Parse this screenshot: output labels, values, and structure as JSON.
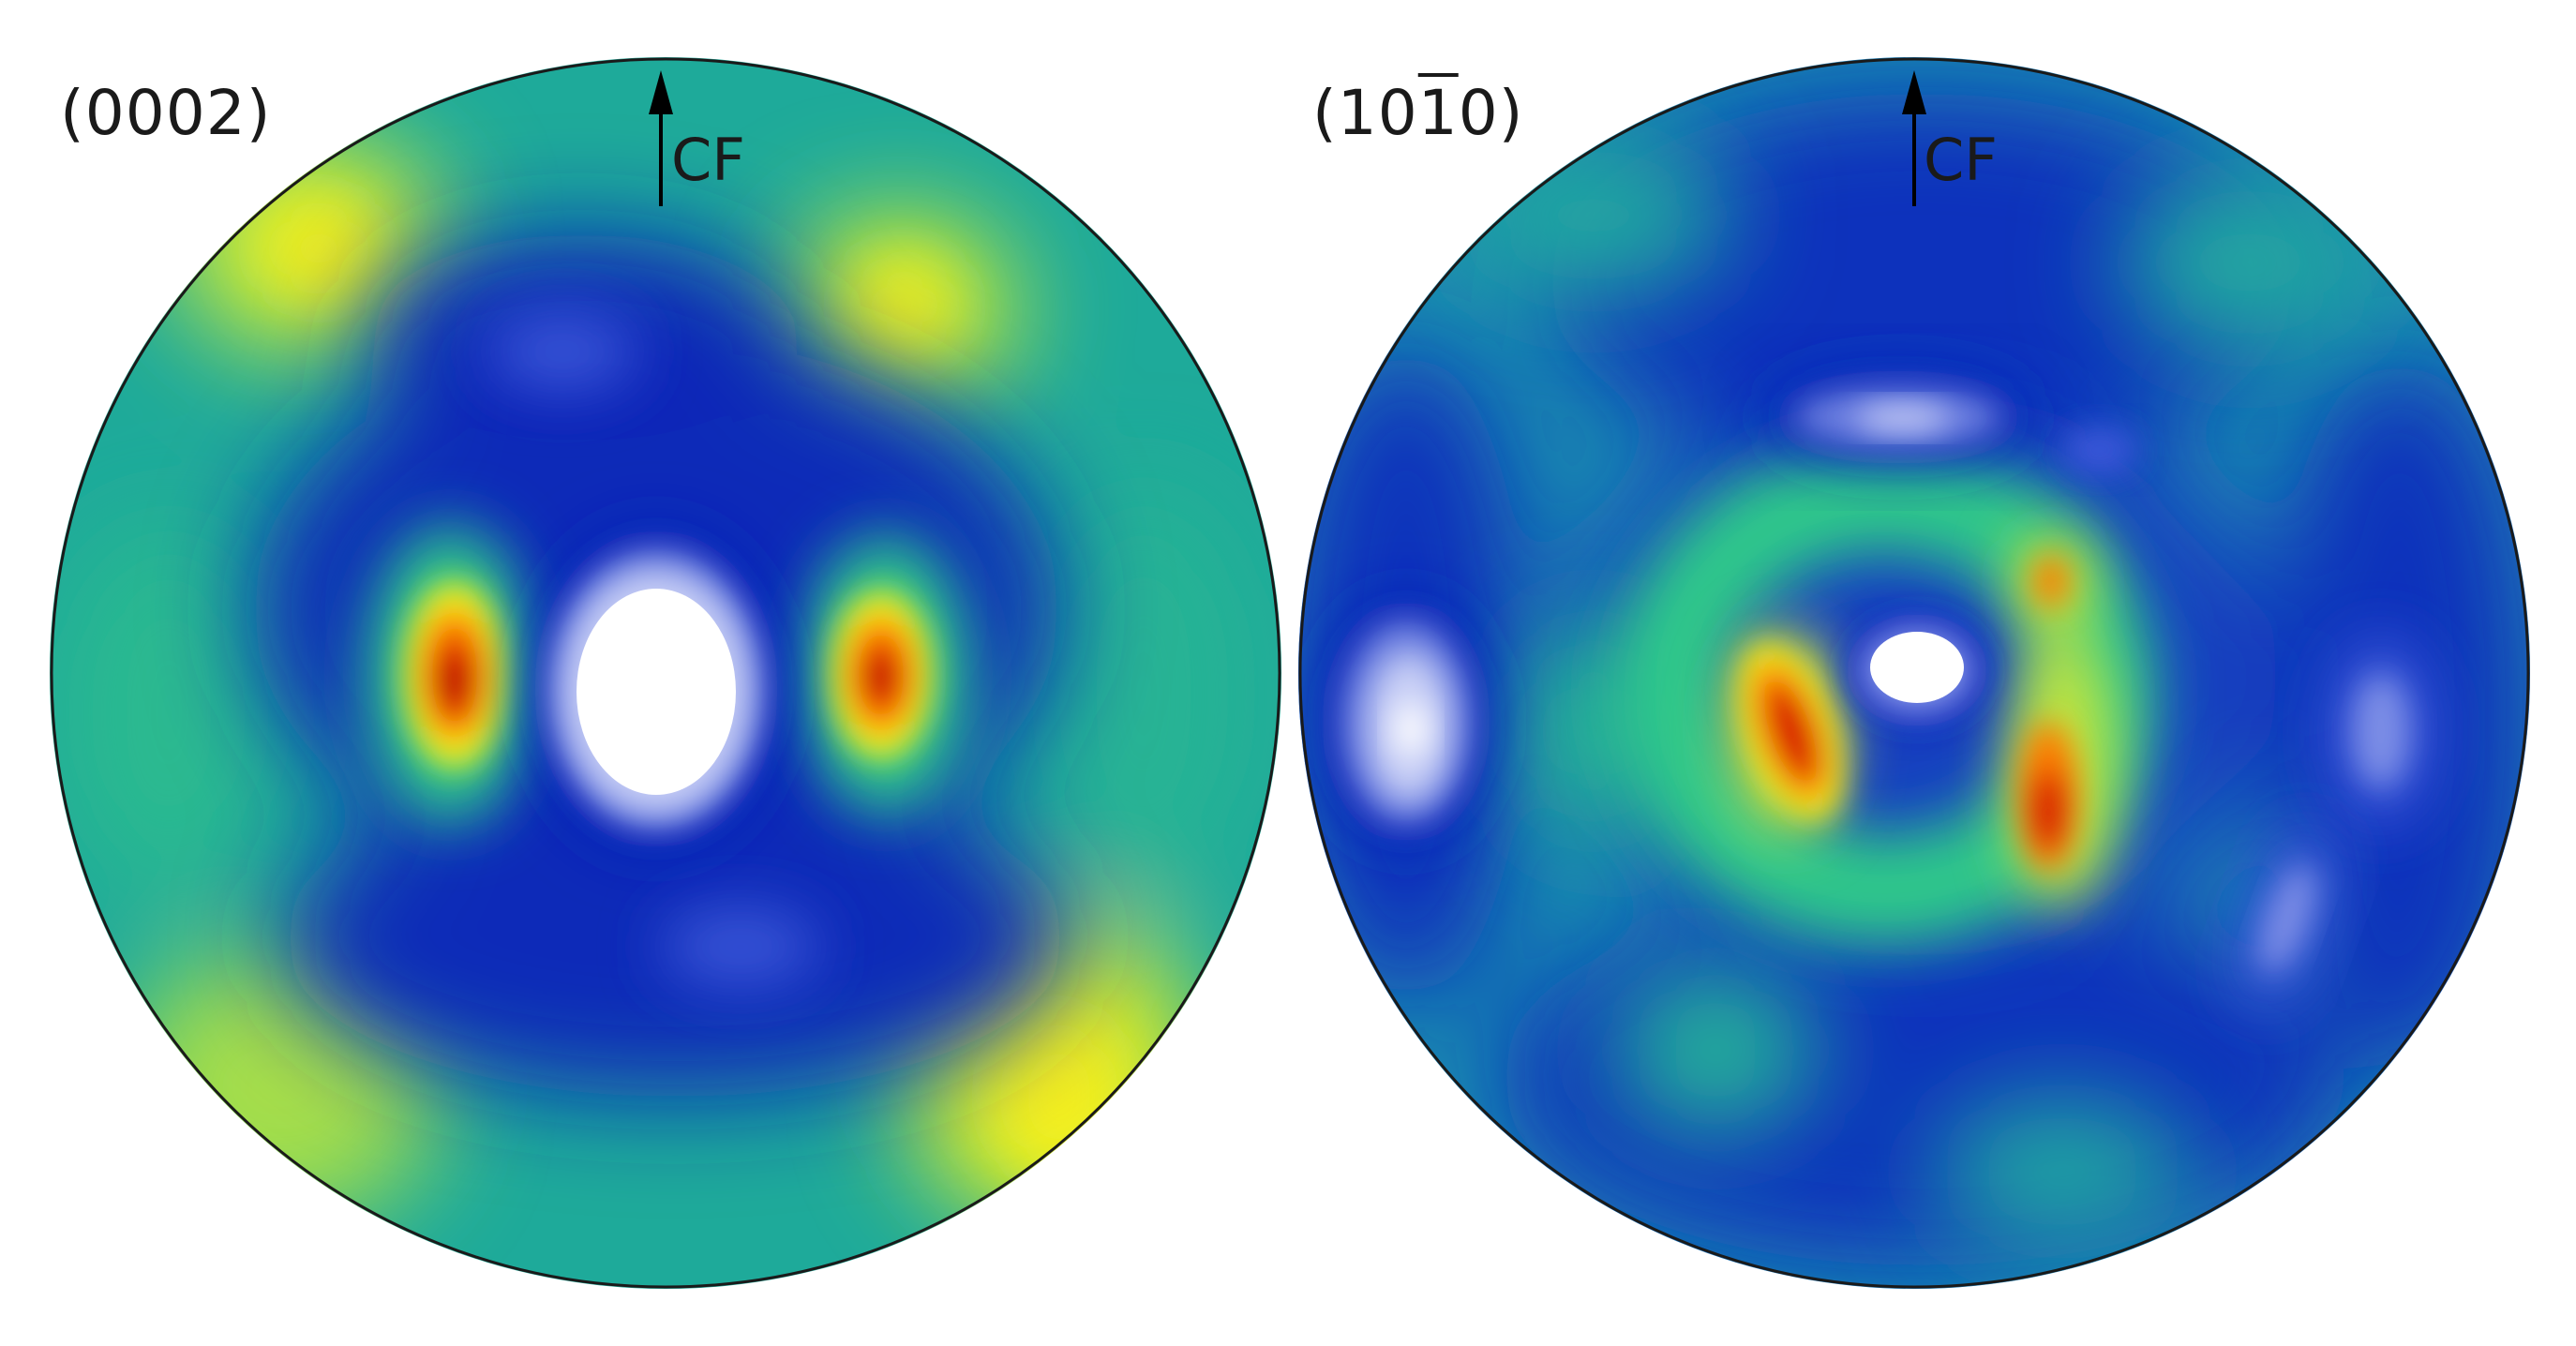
{
  "figure": {
    "panels": [
      {
        "id": "left",
        "label": "(0002)",
        "arrow_label": "CF"
      },
      {
        "id": "right",
        "label_parts": [
          "(10",
          "1",
          "0)"
        ],
        "arrow_label": "CF"
      }
    ],
    "colors": {
      "background": "#1eaa9a",
      "low": "#0a27b8",
      "low_light": "#3a56d8",
      "minimum": "#ffffff",
      "minimum_edge": "#6c7fe0",
      "mid": "#2ec98a",
      "high": "#f2ef1a",
      "max_edge": "#ff7a00",
      "max": "#d50000",
      "max_core": "#a80000",
      "outline": "#1a1a1a"
    }
  }
}
